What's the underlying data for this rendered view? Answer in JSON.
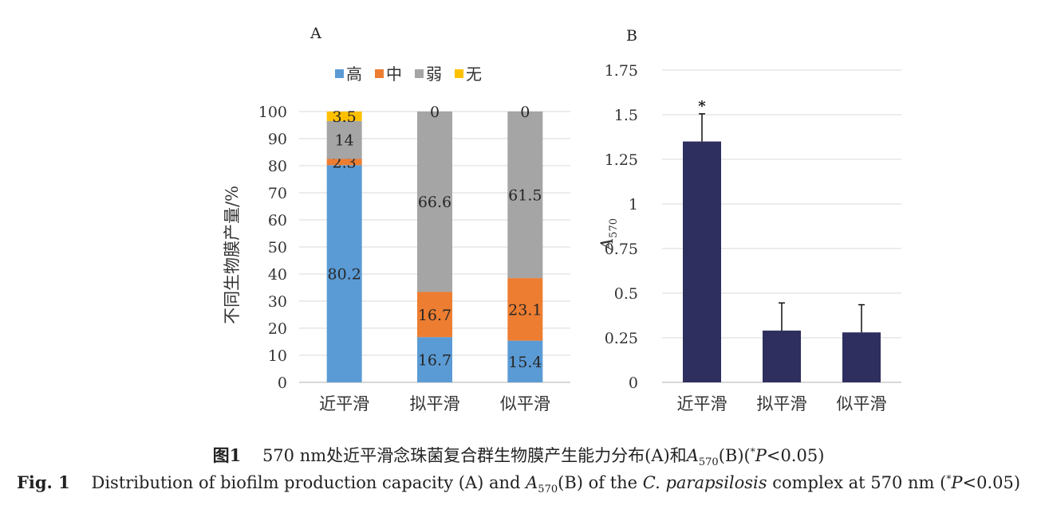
{
  "chart_data": [
    {
      "type": "bar",
      "stacked": true,
      "panel_label": "A",
      "categories": [
        "近平滑",
        "拟平滑",
        "似平滑"
      ],
      "ylabel": "不同生物膜产量/%",
      "ylim": [
        0,
        100
      ],
      "y_ticks": [
        "0",
        "10",
        "20",
        "30",
        "40",
        "50",
        "60",
        "70",
        "80",
        "90",
        "100"
      ],
      "grid": true,
      "legend_position": "top",
      "series": [
        {
          "name": "高",
          "color": "#5b9bd5",
          "values": [
            80.2,
            16.7,
            15.4
          ],
          "labels": [
            "80.2",
            "16.7",
            "15.4"
          ]
        },
        {
          "name": "中",
          "color": "#ed7d31",
          "values": [
            2.3,
            16.7,
            23.1
          ],
          "labels": [
            "2.3",
            "16.7",
            "23.1"
          ]
        },
        {
          "name": "弱",
          "color": "#a5a5a5",
          "values": [
            14,
            66.6,
            61.5
          ],
          "labels": [
            "14",
            "66.6",
            "61.5"
          ]
        },
        {
          "name": "无",
          "color": "#ffc000",
          "values": [
            3.5,
            0,
            0
          ],
          "labels": [
            "3.5",
            "0",
            "0"
          ]
        }
      ]
    },
    {
      "type": "bar",
      "panel_label": "B",
      "categories": [
        "近平滑",
        "拟平滑",
        "似平滑"
      ],
      "ylabel_main": "A",
      "ylabel_sub": "570",
      "ylim": [
        0,
        1.75
      ],
      "y_ticks": [
        "0",
        "0.25",
        "0.5",
        "0.75",
        "1",
        "1.25",
        "1.5",
        "1.75"
      ],
      "grid": true,
      "color": "#2e2f5e",
      "values": [
        1.35,
        0.29,
        0.28
      ],
      "errors": [
        0.155,
        0.155,
        0.155
      ],
      "annotations": [
        "*",
        "",
        ""
      ]
    }
  ],
  "caption_zh": {
    "fig": "图1",
    "text_a": "570 nm处近平滑念珠菌复合群生物膜产生能力分布(A)和",
    "var": "A",
    "sub": "570",
    "text_b": "(B)(",
    "star": "*",
    "p": "P",
    "text_c": "<0.05)"
  },
  "caption_en": {
    "fig": "Fig. 1",
    "text_a": "Distribution of biofilm production capacity (A) and ",
    "var": "A",
    "sub": "570",
    "text_b": "(B) of the ",
    "species": "C. parapsilosis",
    "text_c": " complex at 570 nm (",
    "star": "*",
    "p": "P",
    "text_d": "<0.05)"
  }
}
